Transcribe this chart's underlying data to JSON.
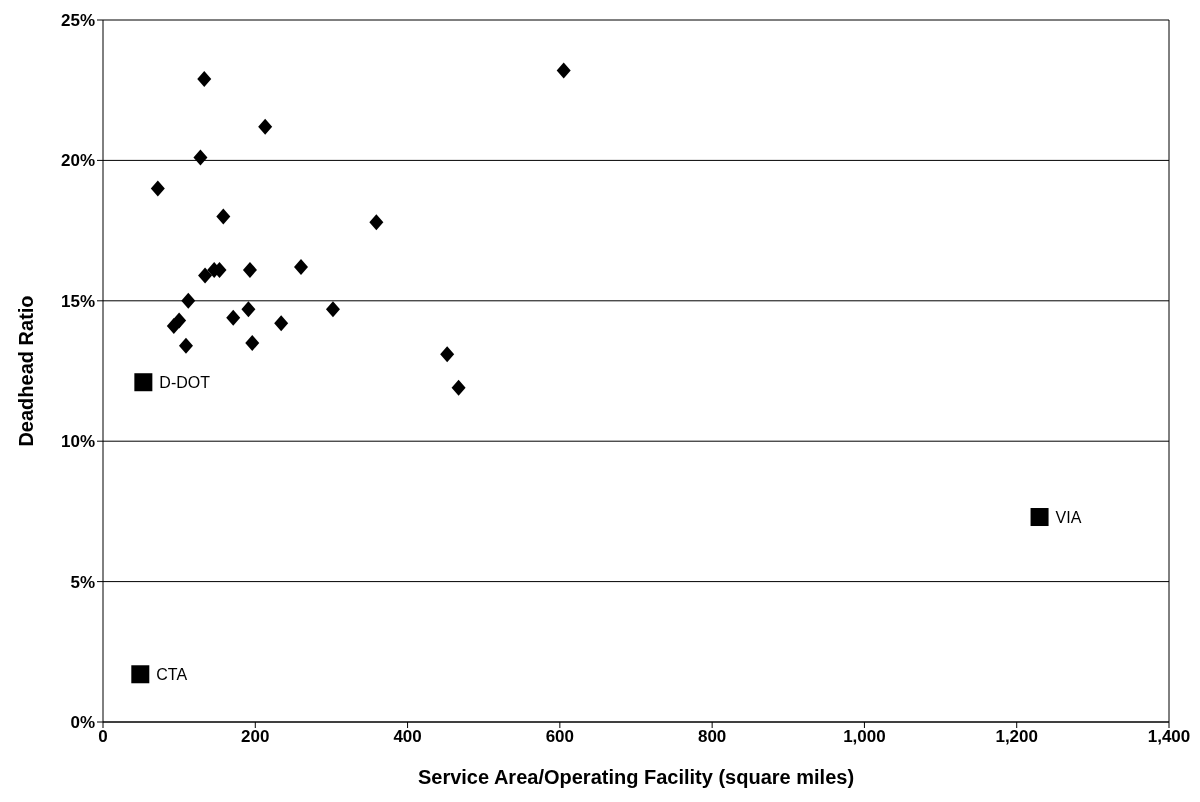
{
  "chart_data": {
    "type": "scatter",
    "xlabel": "Service Area/Operating Facility (square miles)",
    "ylabel": "Deadhead Ratio",
    "xlim": [
      0,
      1400
    ],
    "xticks": [
      0,
      200,
      400,
      600,
      800,
      {
        "value": 1000,
        "label": "1,000"
      },
      {
        "value": 1200,
        "label": "1,200"
      },
      {
        "value": 1400,
        "label": "1,400"
      }
    ],
    "ylim": [
      0,
      25
    ],
    "yticks": [
      {
        "value": 0,
        "label": "0%"
      },
      {
        "value": 5,
        "label": "5%"
      },
      {
        "value": 10,
        "label": "10%"
      },
      {
        "value": 15,
        "label": "15%"
      },
      {
        "value": 20,
        "label": "20%"
      },
      {
        "value": 25,
        "label": "25%"
      }
    ],
    "grid": "y",
    "series": [
      {
        "color": "#000000",
        "marker": "diamond",
        "x": [
          72,
          133,
          605,
          213,
          128,
          158,
          359,
          260,
          193,
          146,
          153,
          134,
          112,
          302,
          191,
          171,
          234,
          100,
          93,
          109,
          196,
          452,
          467
        ],
        "values": [
          19.0,
          22.9,
          23.2,
          21.2,
          20.1,
          18.0,
          17.8,
          16.2,
          16.1,
          16.1,
          16.1,
          15.9,
          15.0,
          14.7,
          14.7,
          14.4,
          14.2,
          14.3,
          14.1,
          13.4,
          13.5,
          13.1,
          11.9
        ]
      },
      {
        "color": "#000000",
        "marker": "square",
        "x": [
          53,
          1230,
          49
        ],
        "values": [
          12.1,
          7.3,
          1.7
        ]
      }
    ],
    "annotations": [
      {
        "text": "D-DOT",
        "x": 53,
        "y": 12.1
      },
      {
        "text": "VIA",
        "x": 1230,
        "y": 7.3
      },
      {
        "text": "CTA",
        "x": 49,
        "y": 1.7
      }
    ]
  }
}
